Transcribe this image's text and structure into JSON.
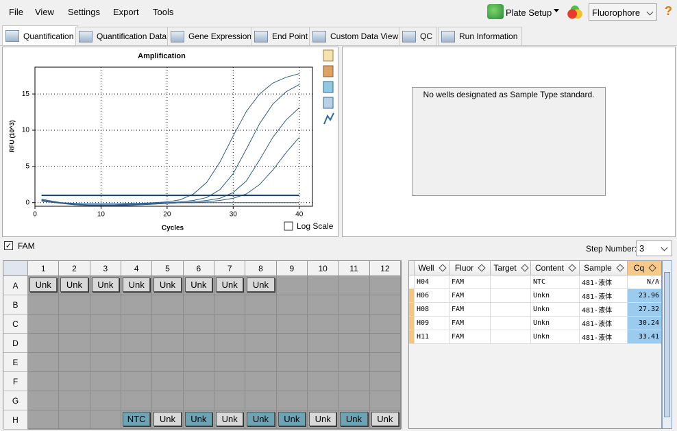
{
  "menu": [
    "File",
    "View",
    "Settings",
    "Export",
    "Tools"
  ],
  "toolbar": {
    "plate_setup": "Plate Setup",
    "fluorophore": "Fluorophore"
  },
  "tabs": [
    "Quantification",
    "Quantification Data",
    "Gene Expression",
    "End Point",
    "Custom Data View",
    "QC",
    "Run Information"
  ],
  "chart_data": {
    "type": "line",
    "title": "Amplification",
    "x_label": "Cycles",
    "y_label": "RFU (10^3)",
    "x": [
      1,
      2,
      4,
      6,
      8,
      10,
      12,
      14,
      16,
      18,
      20,
      22,
      24,
      26,
      28,
      30,
      32,
      34,
      36,
      38,
      40
    ],
    "series": [
      {
        "color": "#2e5d8e",
        "values": [
          0.5,
          0.3,
          0,
          -0.2,
          -0.3,
          -0.3,
          -0.3,
          -0.2,
          -0.1,
          0,
          0.1,
          0.4,
          1.2,
          2.8,
          5.6,
          9.2,
          12.6,
          15.0,
          16.5,
          17.3,
          17.8
        ]
      },
      {
        "color": "#2e5d8e",
        "values": [
          0.4,
          0.2,
          -0.1,
          -0.3,
          -0.4,
          -0.4,
          -0.4,
          -0.3,
          -0.2,
          -0.1,
          0,
          0.1,
          0.3,
          0.7,
          1.8,
          4.0,
          7.4,
          10.9,
          13.6,
          15.3,
          16.3
        ]
      },
      {
        "color": "#2e5d8e",
        "values": [
          0.3,
          0.1,
          -0.1,
          -0.3,
          -0.4,
          -0.4,
          -0.4,
          -0.4,
          -0.3,
          -0.2,
          -0.1,
          0,
          0.1,
          0.3,
          0.6,
          1.4,
          3.0,
          5.9,
          9.0,
          11.4,
          13.1
        ]
      },
      {
        "color": "#2e5d8e",
        "values": [
          0.3,
          0.1,
          -0.1,
          -0.2,
          -0.3,
          -0.3,
          -0.3,
          -0.3,
          -0.3,
          -0.2,
          -0.1,
          0,
          0,
          0.1,
          0.3,
          0.6,
          1.2,
          2.5,
          4.5,
          6.9,
          9.0
        ]
      },
      {
        "color": "#2e5d8e",
        "values": [
          0.2,
          0.1,
          0,
          -0.1,
          -0.1,
          -0.1,
          -0.1,
          -0.1,
          -0.1,
          -0.1,
          -0.1,
          0,
          0,
          0,
          0,
          0,
          0,
          0,
          0,
          0,
          0
        ]
      }
    ],
    "threshold": 1.0,
    "threshold_color": "#123e6c",
    "xlim": [
      0,
      42
    ],
    "xticks": [
      0,
      10,
      20,
      30,
      40
    ],
    "ylim": [
      -0.5,
      18.7
    ],
    "yticks": [
      0,
      5,
      10,
      15
    ],
    "grid": true,
    "log_scale_label": "Log Scale"
  },
  "standard_panel": {
    "message": "No wells designated as Sample Type standard."
  },
  "fluor_filter": {
    "label": "FAM",
    "step_label": "Step Number:",
    "step_value": 3
  },
  "plate": {
    "columns": [
      1,
      2,
      3,
      4,
      5,
      6,
      7,
      8,
      9,
      10,
      11,
      12
    ],
    "rows": [
      {
        "label": "A",
        "cells": [
          {
            "text": "Unk"
          },
          {
            "text": "Unk"
          },
          {
            "text": "Unk"
          },
          {
            "text": "Unk"
          },
          {
            "text": "Unk"
          },
          {
            "text": "Unk"
          },
          {
            "text": "Unk"
          },
          {
            "text": "Unk"
          },
          null,
          null,
          null,
          null
        ]
      },
      {
        "label": "B",
        "cells": [
          null,
          null,
          null,
          null,
          null,
          null,
          null,
          null,
          null,
          null,
          null,
          null
        ]
      },
      {
        "label": "C",
        "cells": [
          null,
          null,
          null,
          null,
          null,
          null,
          null,
          null,
          null,
          null,
          null,
          null
        ]
      },
      {
        "label": "D",
        "cells": [
          null,
          null,
          null,
          null,
          null,
          null,
          null,
          null,
          null,
          null,
          null,
          null
        ]
      },
      {
        "label": "E",
        "cells": [
          null,
          null,
          null,
          null,
          null,
          null,
          null,
          null,
          null,
          null,
          null,
          null
        ]
      },
      {
        "label": "F",
        "cells": [
          null,
          null,
          null,
          null,
          null,
          null,
          null,
          null,
          null,
          null,
          null,
          null
        ]
      },
      {
        "label": "G",
        "cells": [
          null,
          null,
          null,
          null,
          null,
          null,
          null,
          null,
          null,
          null,
          null,
          null
        ]
      },
      {
        "label": "H",
        "cells": [
          null,
          null,
          null,
          {
            "text": "NTC",
            "selected": true
          },
          {
            "text": "Unk"
          },
          {
            "text": "Unk",
            "selected": true
          },
          {
            "text": "Unk"
          },
          {
            "text": "Unk",
            "selected": true
          },
          {
            "text": "Unk",
            "selected": true
          },
          {
            "text": "Unk"
          },
          {
            "text": "Unk",
            "selected": true
          },
          {
            "text": "Unk"
          }
        ]
      }
    ]
  },
  "table": {
    "headers": [
      "Well",
      "Fluor",
      "Target",
      "Content",
      "Sample",
      "Cq"
    ],
    "rows": [
      [
        "H04",
        "FAM",
        null,
        "NTC",
        "481-液体",
        "N/A"
      ],
      [
        "H06",
        "FAM",
        null,
        "Unkn",
        "481-液体",
        23.96
      ],
      [
        "H08",
        "FAM",
        null,
        "Unkn",
        "481-液体",
        27.32
      ],
      [
        "H09",
        "FAM",
        null,
        "Unkn",
        "481-液体",
        30.24
      ],
      [
        "H11",
        "FAM",
        null,
        "Unkn",
        "481-液体",
        33.41
      ]
    ]
  }
}
